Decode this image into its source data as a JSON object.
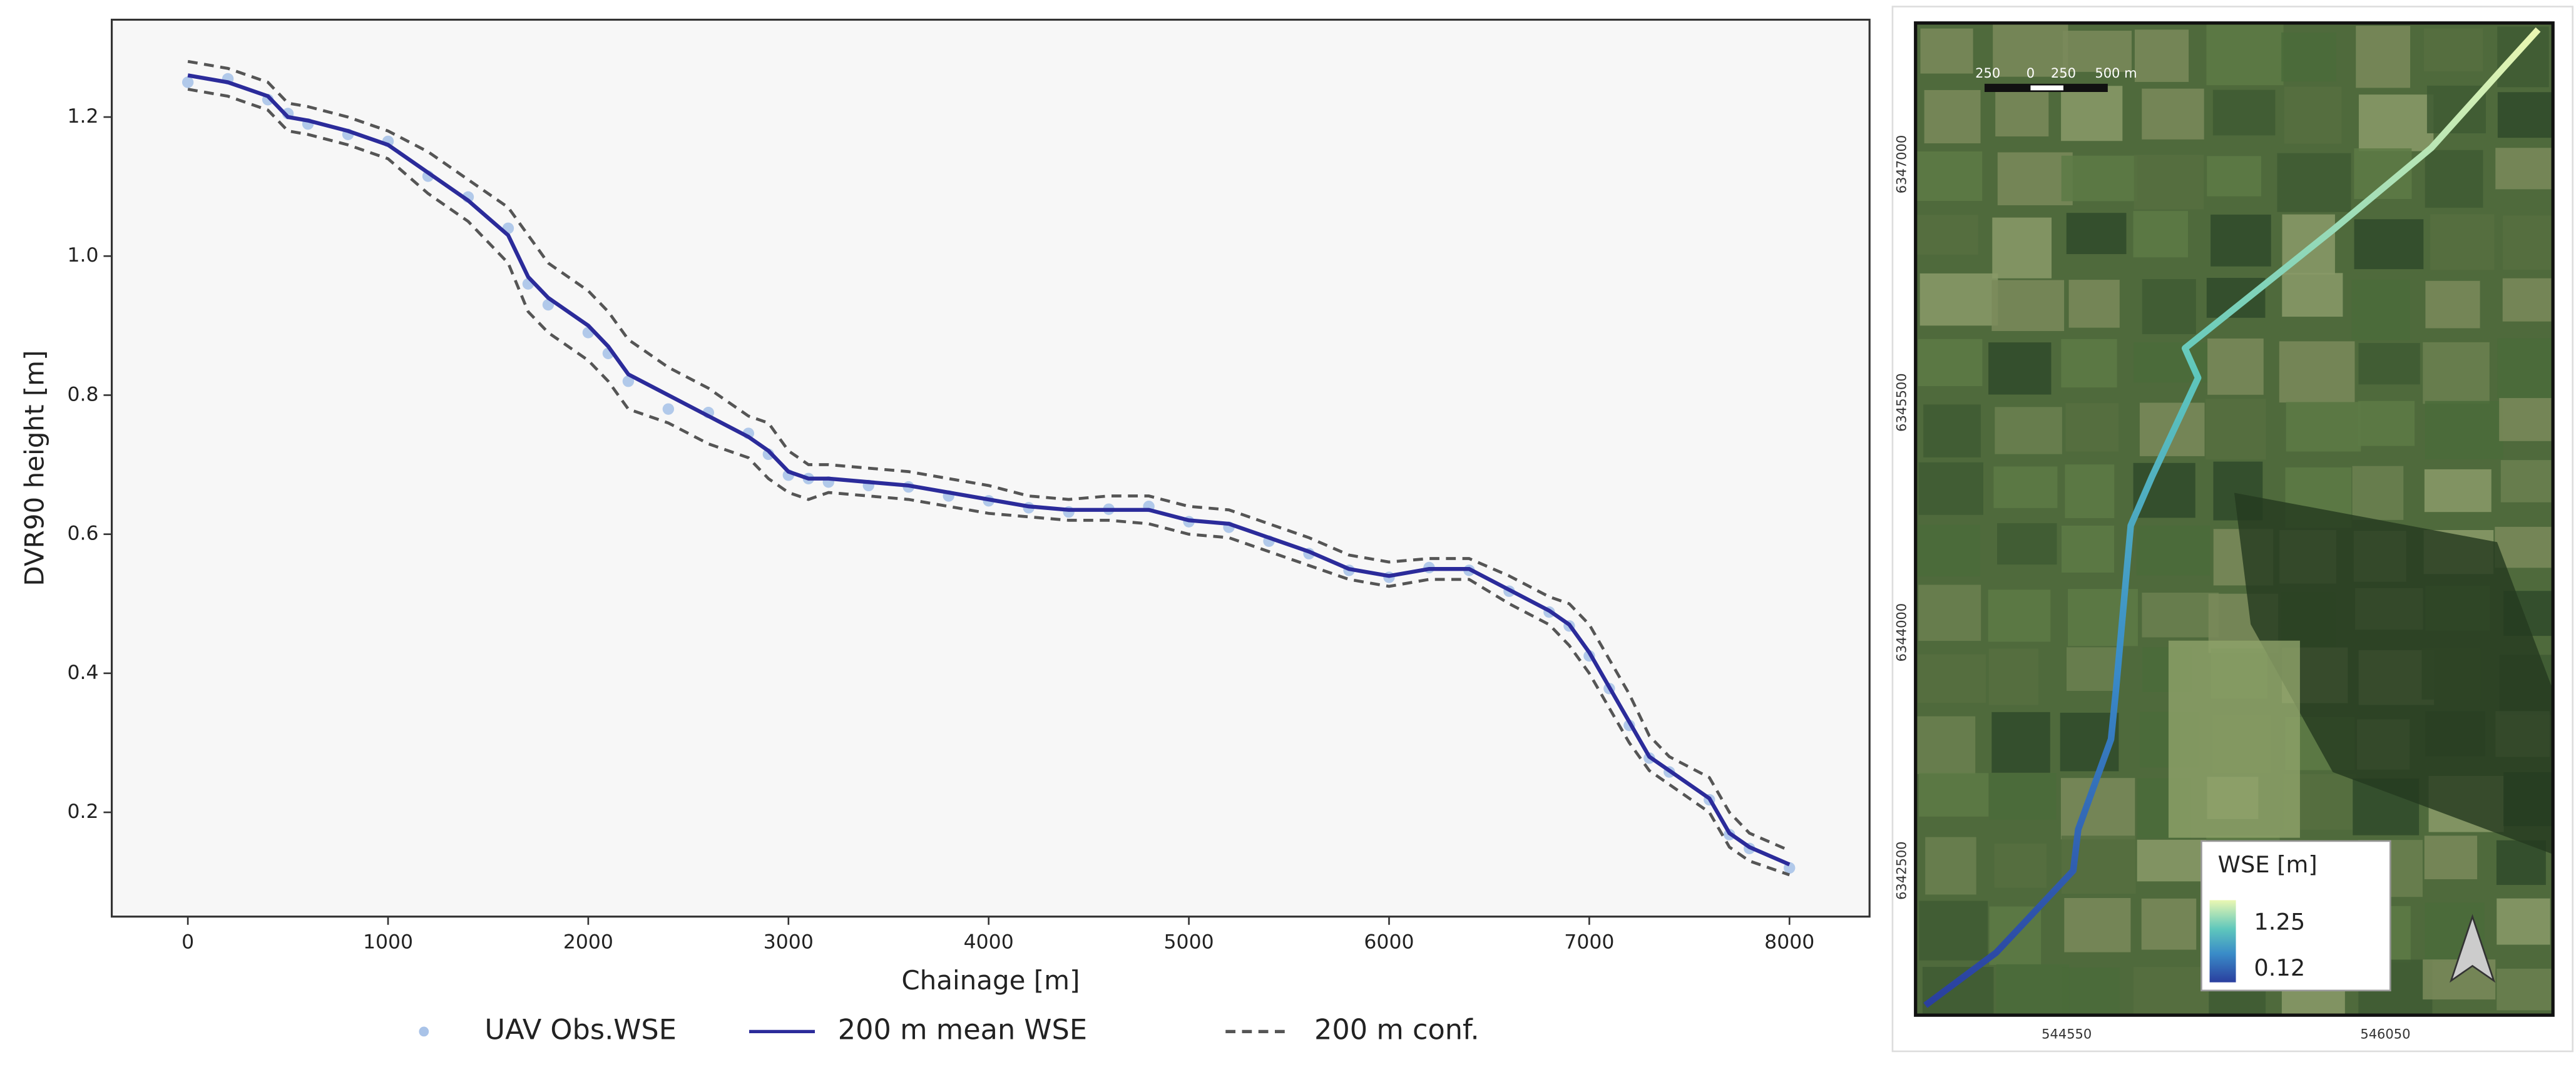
{
  "chart_data": {
    "type": "line",
    "xlabel": "Chainage [m]",
    "ylabel": "DVR90 height [m]",
    "xlim": [
      -380,
      8400
    ],
    "ylim": [
      0.05,
      1.34
    ],
    "xticks": [
      0,
      1000,
      2000,
      3000,
      4000,
      5000,
      6000,
      7000,
      8000
    ],
    "yticks": [
      0.2,
      0.4,
      0.6,
      0.8,
      {
        "value": 1,
        "label": "1.0"
      },
      1.2
    ],
    "x": [
      0,
      200,
      400,
      500,
      600,
      800,
      1000,
      1200,
      1400,
      1600,
      1700,
      1800,
      2000,
      2100,
      2200,
      2400,
      2600,
      2800,
      2900,
      3000,
      3100,
      3200,
      3400,
      3600,
      3800,
      4000,
      4200,
      4400,
      4600,
      4800,
      5000,
      5200,
      5400,
      5600,
      5800,
      6000,
      6200,
      6400,
      6600,
      6800,
      6900,
      7000,
      7100,
      7200,
      7300,
      7400,
      7600,
      7700,
      7800,
      8000
    ],
    "series": [
      {
        "name": "UAV Obs.WSE",
        "color": "#a9c3e8",
        "style": "scatter",
        "values": [
          1.25,
          1.255,
          1.225,
          1.205,
          1.19,
          1.175,
          1.165,
          1.115,
          1.085,
          1.04,
          0.96,
          0.93,
          0.89,
          0.86,
          0.82,
          0.78,
          0.775,
          0.745,
          0.715,
          0.685,
          0.68,
          0.675,
          0.67,
          0.668,
          0.655,
          0.648,
          0.638,
          0.632,
          0.636,
          0.64,
          0.618,
          0.61,
          0.59,
          0.572,
          0.548,
          0.538,
          0.552,
          0.548,
          0.518,
          0.488,
          0.468,
          0.425,
          0.378,
          0.325,
          0.278,
          0.258,
          0.218,
          0.168,
          0.148,
          0.12
        ]
      },
      {
        "name": "200 m mean WSE",
        "color": "#2b2b9a",
        "style": "solid",
        "values": [
          1.26,
          1.25,
          1.23,
          1.2,
          1.195,
          1.18,
          1.16,
          1.12,
          1.08,
          1.03,
          0.97,
          0.94,
          0.9,
          0.87,
          0.83,
          0.8,
          0.77,
          0.74,
          0.72,
          0.69,
          0.68,
          0.68,
          0.675,
          0.67,
          0.66,
          0.65,
          0.64,
          0.635,
          0.635,
          0.635,
          0.62,
          0.615,
          0.595,
          0.575,
          0.55,
          0.54,
          0.55,
          0.55,
          0.52,
          0.49,
          0.47,
          0.43,
          0.38,
          0.33,
          0.28,
          0.26,
          0.22,
          0.17,
          0.15,
          0.125
        ]
      },
      {
        "name": "200 m conf.",
        "color": "#555555",
        "style": "dashed",
        "values": [
          1.28,
          1.27,
          1.25,
          1.22,
          1.215,
          1.2,
          1.18,
          1.15,
          1.11,
          1.07,
          1.03,
          0.99,
          0.95,
          0.92,
          0.88,
          0.84,
          0.81,
          0.77,
          0.76,
          0.72,
          0.7,
          0.7,
          0.695,
          0.69,
          0.68,
          0.67,
          0.655,
          0.65,
          0.655,
          0.655,
          0.64,
          0.635,
          0.615,
          0.595,
          0.57,
          0.56,
          0.565,
          0.565,
          0.54,
          0.51,
          0.5,
          0.47,
          0.42,
          0.37,
          0.31,
          0.28,
          0.25,
          0.2,
          0.17,
          0.145
        ]
      },
      {
        "color": "#555555",
        "style": "dashed",
        "values": [
          1.24,
          1.23,
          1.21,
          1.18,
          1.175,
          1.16,
          1.14,
          1.09,
          1.05,
          0.99,
          0.92,
          0.89,
          0.85,
          0.82,
          0.78,
          0.76,
          0.73,
          0.71,
          0.68,
          0.66,
          0.65,
          0.66,
          0.655,
          0.65,
          0.64,
          0.63,
          0.625,
          0.62,
          0.62,
          0.615,
          0.6,
          0.595,
          0.575,
          0.555,
          0.535,
          0.525,
          0.535,
          0.535,
          0.5,
          0.47,
          0.44,
          0.4,
          0.35,
          0.3,
          0.26,
          0.24,
          0.2,
          0.15,
          0.13,
          0.11
        ]
      }
    ]
  },
  "map": {
    "northing_labels": [
      "6347000",
      "6345500",
      "6344000",
      "6342500"
    ],
    "easting_labels": [
      "544550",
      "546050"
    ],
    "scale_bar": [
      "250",
      "0",
      "250",
      "500 m"
    ],
    "legend": {
      "title": "WSE [m]",
      "max": "1.25",
      "min": "0.12"
    }
  }
}
